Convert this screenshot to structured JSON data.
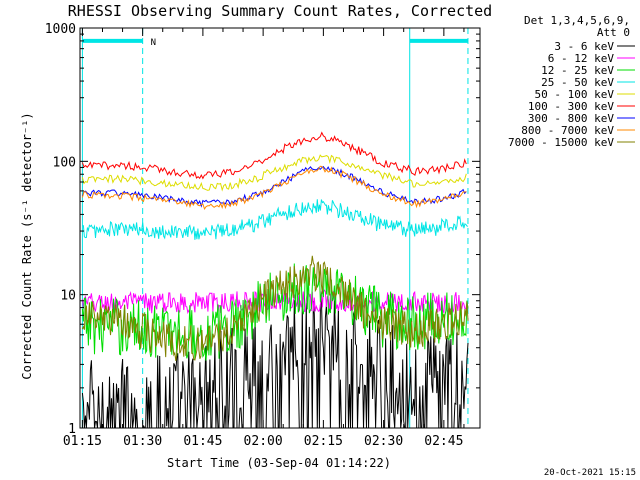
{
  "chart_data": {
    "type": "line",
    "title": "RHESSI Observing Summary Count Rates, Corrected",
    "xlabel": "Start Time (03-Sep-04 01:14:22)",
    "ylabel": "Corrected Count Rate (s⁻¹ detector⁻¹)",
    "x_tick_labels": [
      "01:15",
      "01:30",
      "01:45",
      "02:00",
      "02:15",
      "02:30",
      "02:45"
    ],
    "x_ticks_min": [
      75,
      90,
      105,
      120,
      135,
      150,
      165
    ],
    "xlim_min": [
      74.4,
      174
    ],
    "y_scale": "log",
    "ylim": [
      1,
      1000
    ],
    "y_tick_labels": [
      "1",
      "10",
      "100",
      "1000"
    ],
    "legend_header": [
      "Det 1,3,4,5,6,9,",
      "Att 0"
    ],
    "legend_position": "right",
    "series": [
      {
        "name": "3 - 6 keV",
        "color": "#000000",
        "points": [
          [
            75,
            1.5
          ],
          [
            90,
            1.6
          ],
          [
            100,
            1.8
          ],
          [
            110,
            2.6
          ],
          [
            118,
            3.5
          ],
          [
            122,
            4.2
          ],
          [
            128,
            5.0
          ],
          [
            132,
            5.5
          ],
          [
            138,
            5.0
          ],
          [
            142,
            4.0
          ],
          [
            150,
            2.8
          ],
          [
            158,
            2.3
          ],
          [
            165,
            2.5
          ],
          [
            171,
            2.6
          ]
        ]
      },
      {
        "name": "6 - 12 keV",
        "color": "#ff00ff",
        "points": [
          [
            75,
            8.6
          ],
          [
            90,
            8.7
          ],
          [
            100,
            8.7
          ],
          [
            110,
            8.7
          ],
          [
            116,
            8.9
          ],
          [
            122,
            9.0
          ],
          [
            130,
            9.0
          ],
          [
            140,
            9.0
          ],
          [
            150,
            8.8
          ],
          [
            160,
            8.7
          ],
          [
            171,
            8.8
          ]
        ]
      },
      {
        "name": "12 - 25 keV",
        "color": "#00dd00",
        "points": [
          [
            75,
            6.0
          ],
          [
            90,
            5.6
          ],
          [
            100,
            5.2
          ],
          [
            106,
            5.0
          ],
          [
            110,
            5.4
          ],
          [
            114,
            6.5
          ],
          [
            118,
            7.8
          ],
          [
            122,
            9.5
          ],
          [
            128,
            11.0
          ],
          [
            132,
            11.5
          ],
          [
            136,
            11.0
          ],
          [
            140,
            9.5
          ],
          [
            146,
            7.5
          ],
          [
            150,
            6.6
          ],
          [
            158,
            6.2
          ],
          [
            165,
            6.3
          ],
          [
            171,
            6.5
          ]
        ]
      },
      {
        "name": "25 - 50 keV",
        "color": "#00e5e5",
        "points": [
          [
            75,
            30
          ],
          [
            85,
            31
          ],
          [
            95,
            30
          ],
          [
            105,
            29
          ],
          [
            112,
            31
          ],
          [
            118,
            34
          ],
          [
            124,
            40
          ],
          [
            130,
            45
          ],
          [
            134,
            47
          ],
          [
            138,
            44
          ],
          [
            144,
            38
          ],
          [
            150,
            33
          ],
          [
            158,
            30
          ],
          [
            164,
            32
          ],
          [
            171,
            36
          ]
        ]
      },
      {
        "name": "50 - 100 keV",
        "color": "#dddd00",
        "points": [
          [
            75,
            72
          ],
          [
            85,
            74
          ],
          [
            95,
            69
          ],
          [
            105,
            64
          ],
          [
            112,
            66
          ],
          [
            118,
            74
          ],
          [
            124,
            88
          ],
          [
            130,
            102
          ],
          [
            134,
            107
          ],
          [
            138,
            102
          ],
          [
            144,
            90
          ],
          [
            150,
            78
          ],
          [
            158,
            68
          ],
          [
            165,
            70
          ],
          [
            171,
            76
          ]
        ]
      },
      {
        "name": "100 - 300 keV",
        "color": "#ff0000",
        "points": [
          [
            75,
            92
          ],
          [
            85,
            94
          ],
          [
            95,
            86
          ],
          [
            105,
            78
          ],
          [
            112,
            82
          ],
          [
            118,
            96
          ],
          [
            124,
            120
          ],
          [
            130,
            145
          ],
          [
            134,
            155
          ],
          [
            138,
            145
          ],
          [
            144,
            120
          ],
          [
            150,
            96
          ],
          [
            158,
            84
          ],
          [
            165,
            88
          ],
          [
            171,
            100
          ]
        ]
      },
      {
        "name": "300 - 800 keV",
        "color": "#0000ff",
        "points": [
          [
            75,
            58
          ],
          [
            85,
            58
          ],
          [
            95,
            53
          ],
          [
            105,
            48
          ],
          [
            112,
            50
          ],
          [
            118,
            56
          ],
          [
            124,
            68
          ],
          [
            130,
            84
          ],
          [
            134,
            92
          ],
          [
            138,
            86
          ],
          [
            144,
            72
          ],
          [
            150,
            58
          ],
          [
            158,
            49
          ],
          [
            165,
            53
          ],
          [
            171,
            60
          ]
        ]
      },
      {
        "name": "800 - 7000 keV",
        "color": "#ff8800",
        "points": [
          [
            75,
            56
          ],
          [
            85,
            55
          ],
          [
            95,
            51
          ],
          [
            105,
            46
          ],
          [
            112,
            48
          ],
          [
            118,
            54
          ],
          [
            124,
            66
          ],
          [
            130,
            82
          ],
          [
            134,
            90
          ],
          [
            138,
            84
          ],
          [
            144,
            70
          ],
          [
            150,
            56
          ],
          [
            158,
            48
          ],
          [
            165,
            52
          ],
          [
            171,
            58
          ]
        ]
      },
      {
        "name": "7000 - 15000 keV",
        "color": "#808000",
        "points": [
          [
            75,
            6.8
          ],
          [
            85,
            6.2
          ],
          [
            95,
            4.6
          ],
          [
            100,
            4.2
          ],
          [
            106,
            4.5
          ],
          [
            112,
            5.5
          ],
          [
            118,
            8.0
          ],
          [
            124,
            11.5
          ],
          [
            130,
            14.0
          ],
          [
            134,
            14.5
          ],
          [
            138,
            12.0
          ],
          [
            144,
            8.0
          ],
          [
            150,
            6.0
          ],
          [
            158,
            5.4
          ],
          [
            165,
            6.2
          ],
          [
            171,
            7.0
          ]
        ]
      }
    ],
    "annotations": [
      {
        "text": "N",
        "x_min": 92
      }
    ],
    "overlays": {
      "night_bars_y": 800,
      "night_intervals_min": [
        [
          75,
          90
        ],
        [
          156.5,
          171
        ]
      ],
      "cyan_dashed_x_min": [
        90,
        171
      ],
      "cyan_solid_x_min": [
        75,
        156.5
      ]
    }
  },
  "footer": {
    "timestamp": "20-Oct-2021 15:15"
  }
}
